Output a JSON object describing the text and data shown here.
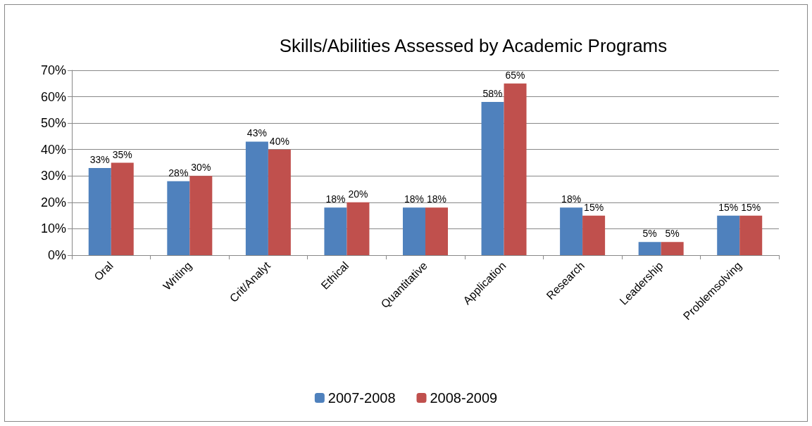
{
  "chart_data": {
    "type": "bar",
    "title": "Skills/Abilities Assessed by Academic Programs",
    "categories": [
      "Oral",
      "Writing",
      "Crit/Analyt",
      "Ethical",
      "Quantitative",
      "Application",
      "Research",
      "Leadership",
      "Problemsolving"
    ],
    "series": [
      {
        "name": "2007-2008",
        "color": "#4f81bd",
        "values": [
          33,
          28,
          43,
          18,
          18,
          58,
          18,
          5,
          15
        ],
        "value_labels": [
          "33%",
          "28%",
          "43%",
          "18%",
          "18%",
          "58%",
          "18%",
          "5%",
          "15%"
        ]
      },
      {
        "name": "2008-2009",
        "color": "#c0504d",
        "values": [
          35,
          30,
          40,
          20,
          18,
          65,
          15,
          5,
          15
        ],
        "value_labels": [
          "35%",
          "30%",
          "40%",
          "20%",
          "18%",
          "65%",
          "15%",
          "5%",
          "15%"
        ]
      }
    ],
    "ylim": [
      0,
      70
    ],
    "yticks": [
      {
        "value": 0,
        "label": "0%"
      },
      {
        "value": 10,
        "label": "10%"
      },
      {
        "value": 20,
        "label": "20%"
      },
      {
        "value": 30,
        "label": "30%"
      },
      {
        "value": 40,
        "label": "40%"
      },
      {
        "value": 50,
        "label": "50%"
      },
      {
        "value": 60,
        "label": "60%"
      },
      {
        "value": 70,
        "label": "70%"
      }
    ],
    "grid": "y",
    "legend": "bottom"
  }
}
